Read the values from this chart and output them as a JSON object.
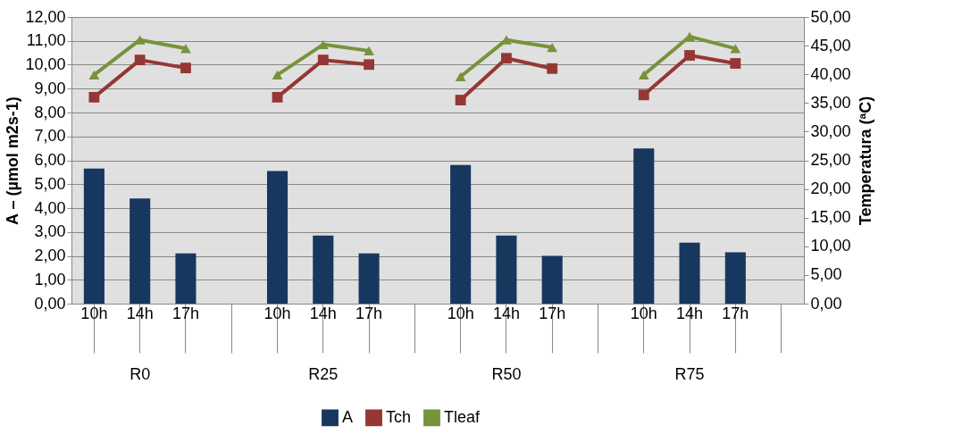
{
  "chart_data": {
    "type": "bar",
    "categories": [
      "10h",
      "14h",
      "17h",
      null,
      "10h",
      "14h",
      "17h",
      null,
      "10h",
      "14h",
      "17h",
      null,
      "10h",
      "14h",
      "17h",
      null
    ],
    "series": [
      {
        "name": "A",
        "color": "#17375e",
        "values": [
          5.65,
          4.4,
          2.1,
          null,
          5.55,
          2.85,
          2.1,
          null,
          5.8,
          2.85,
          2.0,
          null,
          6.5,
          2.55,
          2.15,
          null
        ]
      },
      {
        "name": "Tch",
        "type": "line",
        "axis": "y2",
        "marker": "square",
        "color": "#953735",
        "values": [
          36.0,
          42.5,
          41.1,
          null,
          36.0,
          42.5,
          41.7,
          null,
          35.5,
          42.8,
          41.0,
          null,
          36.4,
          43.3,
          41.9,
          null
        ]
      },
      {
        "name": "Tleaf",
        "type": "line",
        "axis": "y2",
        "marker": "triangle",
        "color": "#77933c",
        "values": [
          39.9,
          46.0,
          44.5,
          null,
          39.9,
          45.2,
          44.1,
          null,
          39.6,
          46.0,
          44.7,
          null,
          39.9,
          46.6,
          44.5,
          null
        ]
      }
    ],
    "annotations": [
      "R0",
      "R25",
      "R50",
      "R75"
    ],
    "ylabel": "A – (µmol m2s-1)",
    "y2label": "Temperatura (ªC)",
    "ylim": [
      0,
      12
    ],
    "yticks": [
      {
        "value": 0,
        "label": "0,00"
      },
      {
        "value": 1,
        "label": "1,00"
      },
      {
        "value": 2,
        "label": "2,00"
      },
      {
        "value": 3,
        "label": "3,00"
      },
      {
        "value": 4,
        "label": "4,00"
      },
      {
        "value": 5,
        "label": "5,00"
      },
      {
        "value": 6,
        "label": "6,00"
      },
      {
        "value": 7,
        "label": "7,00"
      },
      {
        "value": 8,
        "label": "8,00"
      },
      {
        "value": 9,
        "label": "9,00"
      },
      {
        "value": 10,
        "label": "10,00"
      },
      {
        "value": 11,
        "label": "11,00"
      },
      {
        "value": 12,
        "label": "12,00"
      }
    ],
    "y2lim": [
      0,
      50
    ],
    "y2ticks": [
      {
        "value": 0,
        "label": "0,00"
      },
      {
        "value": 5,
        "label": "5,00"
      },
      {
        "value": 10,
        "label": "10,00"
      },
      {
        "value": 15,
        "label": "15,00"
      },
      {
        "value": 20,
        "label": "20,00"
      },
      {
        "value": 25,
        "label": "25,00"
      },
      {
        "value": 30,
        "label": "30,00"
      },
      {
        "value": 35,
        "label": "35,00"
      },
      {
        "value": 40,
        "label": "40,00"
      },
      {
        "value": 45,
        "label": "45,00"
      },
      {
        "value": 50,
        "label": "50,00"
      }
    ],
    "grid": "y",
    "legend": "bottom",
    "line_style": "solid"
  }
}
